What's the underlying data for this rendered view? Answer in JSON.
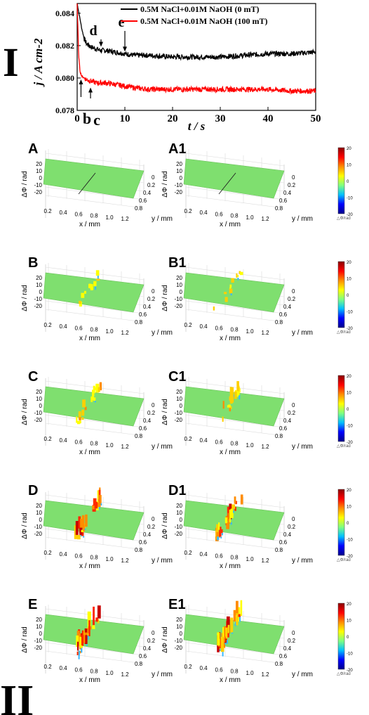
{
  "figure": {
    "section_labels": [
      "I",
      "II"
    ]
  },
  "chart_data": [
    {
      "type": "line",
      "xlabel": "t / s",
      "ylabel": "j / A cm-2",
      "xlim": [
        0,
        50
      ],
      "ylim": [
        0.078,
        0.0846
      ],
      "xticks": [
        "0",
        "10",
        "20",
        "30",
        "40",
        "50"
      ],
      "yticks": [
        "0.078",
        "0.080",
        "0.082",
        "0.084"
      ],
      "legend_position": "top-right",
      "annotations": [
        {
          "label": "b",
          "x": 0.8,
          "y": 0.08
        },
        {
          "label": "c",
          "x": 2.8,
          "y": 0.0795
        },
        {
          "label": "d",
          "x": 5,
          "y": 0.0818
        },
        {
          "label": "e",
          "x": 10,
          "y": 0.0815
        }
      ],
      "series": [
        {
          "name": "0.5M NaCl+0.01M NaOH (0 mT)",
          "color": "#000000",
          "x": [
            0,
            0.5,
            1,
            1.5,
            2,
            3,
            4,
            5,
            6,
            8,
            10,
            12,
            15,
            20,
            25,
            30,
            35,
            40,
            45,
            50
          ],
          "y": [
            0.0846,
            0.0838,
            0.083,
            0.0824,
            0.0821,
            0.0819,
            0.0818,
            0.0817,
            0.0817,
            0.0816,
            0.0815,
            0.0814,
            0.0814,
            0.0813,
            0.0813,
            0.0813,
            0.0814,
            0.0815,
            0.0815,
            0.0816
          ]
        },
        {
          "name": "0.5M NaCl+0.01M NaOH (100 mT)",
          "color": "#ff0000",
          "x": [
            0,
            0.3,
            0.6,
            1,
            1.5,
            2,
            3,
            4,
            6,
            8,
            10,
            12,
            15,
            20,
            25,
            30,
            35,
            40,
            45,
            50
          ],
          "y": [
            0.0846,
            0.0815,
            0.0804,
            0.0801,
            0.08,
            0.0799,
            0.0798,
            0.0797,
            0.0797,
            0.0796,
            0.0795,
            0.0794,
            0.0793,
            0.0793,
            0.0793,
            0.0793,
            0.0793,
            0.0793,
            0.0792,
            0.0792
          ]
        }
      ]
    },
    {
      "type": "heatmap",
      "panels": [
        "A",
        "A1",
        "B",
        "B1",
        "C",
        "C1",
        "D",
        "D1",
        "E",
        "E1"
      ],
      "zlabel": "ΔΦ / rad",
      "xlabel": "x / mm",
      "ylabel": "y / mm",
      "zticks": [
        "20",
        "10",
        "0",
        "-10",
        "-20"
      ],
      "xticks": [
        "0.2",
        "0.4",
        "0.6",
        "0.8",
        "1.0",
        "1.2"
      ],
      "yticks": [
        "0",
        "0.2",
        "0.4",
        "0.6",
        "0.8"
      ],
      "colorbar_ticks": [
        "20",
        "10",
        "0",
        "-10",
        "-20"
      ],
      "colorbar_label": "△Φ/rad",
      "colorbar_colors": [
        "#8b0000",
        "#ff0000",
        "#ff8c00",
        "#ffff00",
        "#80ff80",
        "#00c0ff",
        "#0000ff",
        "#00008b"
      ],
      "surface_color": "#7fdf6f",
      "crack_intensity": [
        0,
        0,
        0.25,
        0.2,
        0.45,
        0.5,
        0.8,
        0.8,
        1.0,
        0.9
      ]
    }
  ]
}
